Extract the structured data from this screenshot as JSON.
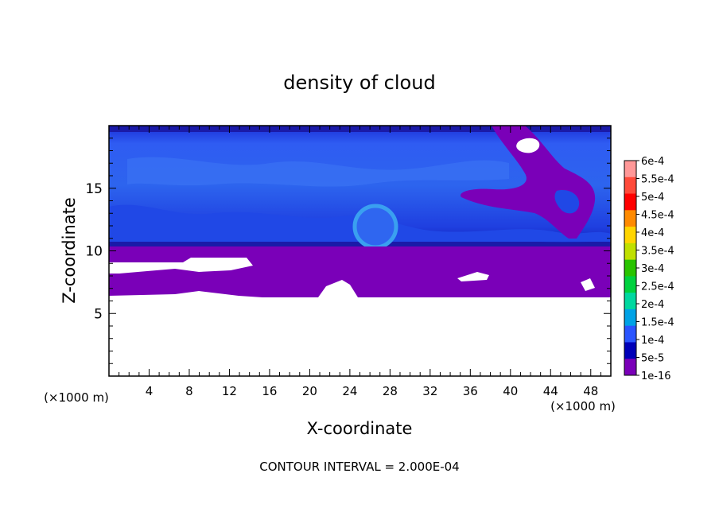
{
  "chart_data": {
    "type": "heatmap",
    "title": "density of cloud",
    "xlabel": "X-coordinate",
    "ylabel": "Z-coordinate",
    "x_unit_left": "(×1000 m)",
    "x_unit_right": "(×1000 m)",
    "xlim": [
      0,
      50
    ],
    "ylim": [
      0,
      20
    ],
    "x_ticks": [
      "4",
      "8",
      "12",
      "16",
      "20",
      "24",
      "28",
      "32",
      "36",
      "40",
      "44",
      "48"
    ],
    "y_ticks": [
      "5",
      "10",
      "15"
    ],
    "footer": "CONTOUR INTERVAL = 2.000E-04",
    "colorbar": {
      "labels": [
        "6e-4",
        "5.5e-4",
        "5e-4",
        "4.5e-4",
        "4e-4",
        "3.5e-4",
        "3e-4",
        "2.5e-4",
        "2e-4",
        "1.5e-4",
        "1e-4",
        "5e-5",
        "1e-16"
      ],
      "colors": [
        "#ff9898",
        "#ff4a3a",
        "#ff0000",
        "#ff8a00",
        "#ffd500",
        "#c0e000",
        "#29c400",
        "#00d23e",
        "#00d8a0",
        "#00a2e6",
        "#2a55ff",
        "#0000b8",
        "#7a00b8"
      ]
    },
    "grid": false,
    "legend": "right"
  }
}
